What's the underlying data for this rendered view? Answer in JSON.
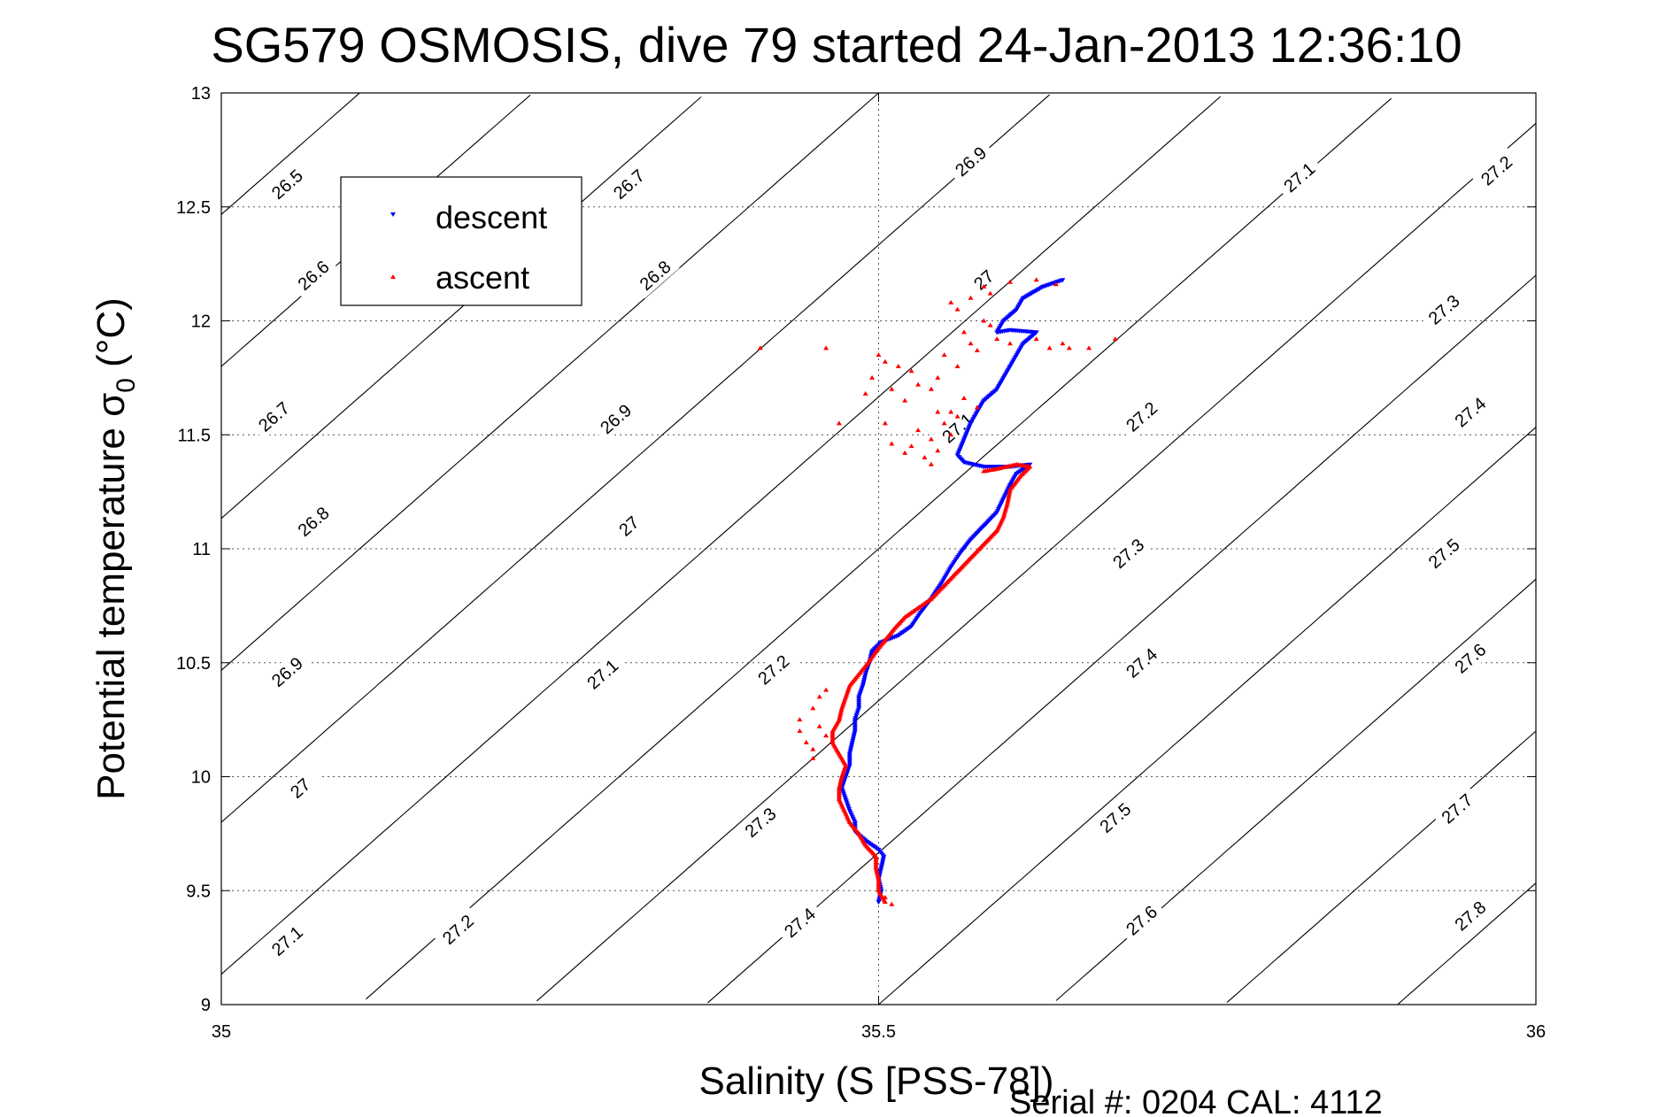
{
  "chart_data": {
    "type": "scatter",
    "title": "SG579 OSMOSIS, dive 79 started 24-Jan-2013 12:36:10",
    "xlabel": "Salinity (S [PSS-78])",
    "ylabel_main": "Potential temperature σ",
    "ylabel_sub": "0",
    "ylabel_unit": " (°C)",
    "xlim": [
      35,
      36
    ],
    "ylim": [
      9,
      13
    ],
    "xticks": [
      35,
      35.5,
      36
    ],
    "xtick_labels": [
      "35",
      "35.5",
      "36"
    ],
    "yticks": [
      9,
      9.5,
      10,
      10.5,
      11,
      11.5,
      12,
      12.5,
      13
    ],
    "ytick_labels": [
      "9",
      "9.5",
      "10",
      "10.5",
      "11",
      "11.5",
      "12",
      "12.5",
      "13"
    ],
    "grid": true,
    "legend_position": "top-left",
    "footer": "Serial #: 0204  CAL: 4112",
    "contours": {
      "sigma_levels": [
        26.5,
        26.6,
        26.7,
        26.8,
        26.9,
        27.0,
        27.1,
        27.2,
        27.3,
        27.4,
        27.5,
        27.6,
        27.7,
        27.8
      ],
      "labels": [
        {
          "text": "26.5",
          "s": 35.05,
          "t": 12.6
        },
        {
          "text": "26.7",
          "s": 35.31,
          "t": 12.6
        },
        {
          "text": "26.9",
          "s": 35.57,
          "t": 12.7
        },
        {
          "text": "27.1",
          "s": 35.82,
          "t": 12.63
        },
        {
          "text": "27.2",
          "s": 35.97,
          "t": 12.66
        },
        {
          "text": "26.6",
          "s": 35.07,
          "t": 12.2
        },
        {
          "text": "26.8",
          "s": 35.33,
          "t": 12.2
        },
        {
          "text": "27",
          "s": 35.58,
          "t": 12.18
        },
        {
          "text": "27.3",
          "s": 35.93,
          "t": 12.05
        },
        {
          "text": "26.7",
          "s": 35.04,
          "t": 11.58
        },
        {
          "text": "26.9",
          "s": 35.3,
          "t": 11.57
        },
        {
          "text": "27.1",
          "s": 35.56,
          "t": 11.53
        },
        {
          "text": "27.2",
          "s": 35.7,
          "t": 11.58
        },
        {
          "text": "27.4",
          "s": 35.95,
          "t": 11.6
        },
        {
          "text": "26.8",
          "s": 35.07,
          "t": 11.12
        },
        {
          "text": "27",
          "s": 35.31,
          "t": 11.1
        },
        {
          "text": "27.3",
          "s": 35.69,
          "t": 10.98
        },
        {
          "text": "27.5",
          "s": 35.93,
          "t": 10.98
        },
        {
          "text": "26.9",
          "s": 35.05,
          "t": 10.46
        },
        {
          "text": "27.1",
          "s": 35.29,
          "t": 10.45
        },
        {
          "text": "27.2",
          "s": 35.42,
          "t": 10.47
        },
        {
          "text": "27.4",
          "s": 35.7,
          "t": 10.5
        },
        {
          "text": "27.6",
          "s": 35.95,
          "t": 10.52
        },
        {
          "text": "27",
          "s": 35.06,
          "t": 9.95
        },
        {
          "text": "27.3",
          "s": 35.41,
          "t": 9.8
        },
        {
          "text": "27.5",
          "s": 35.68,
          "t": 9.82
        },
        {
          "text": "27.7",
          "s": 35.94,
          "t": 9.86
        },
        {
          "text": "27.1",
          "s": 35.05,
          "t": 9.28
        },
        {
          "text": "27.2",
          "s": 35.18,
          "t": 9.33
        },
        {
          "text": "27.4",
          "s": 35.44,
          "t": 9.36
        },
        {
          "text": "27.6",
          "s": 35.7,
          "t": 9.37
        },
        {
          "text": "27.8",
          "s": 35.95,
          "t": 9.39
        }
      ]
    },
    "series": [
      {
        "name": "descent",
        "color": "#0000ff",
        "marker": "triangle-down",
        "path": [
          [
            35.5,
            9.45
          ],
          [
            35.502,
            9.5
          ],
          [
            35.5,
            9.55
          ],
          [
            35.502,
            9.6
          ],
          [
            35.504,
            9.65
          ],
          [
            35.5,
            9.68
          ],
          [
            35.49,
            9.72
          ],
          [
            35.482,
            9.76
          ],
          [
            35.482,
            9.8
          ],
          [
            35.478,
            9.85
          ],
          [
            35.475,
            9.9
          ],
          [
            35.472,
            9.95
          ],
          [
            35.475,
            10.0
          ],
          [
            35.478,
            10.05
          ],
          [
            35.478,
            10.1
          ],
          [
            35.48,
            10.15
          ],
          [
            35.482,
            10.2
          ],
          [
            35.482,
            10.25
          ],
          [
            35.485,
            10.3
          ],
          [
            35.485,
            10.35
          ],
          [
            35.488,
            10.4
          ],
          [
            35.49,
            10.45
          ],
          [
            35.493,
            10.5
          ],
          [
            35.495,
            10.55
          ],
          [
            35.502,
            10.59
          ],
          [
            35.515,
            10.62
          ],
          [
            35.525,
            10.66
          ],
          [
            35.532,
            10.72
          ],
          [
            35.54,
            10.78
          ],
          [
            35.548,
            10.85
          ],
          [
            35.555,
            10.92
          ],
          [
            35.562,
            10.98
          ],
          [
            35.57,
            11.04
          ],
          [
            35.58,
            11.1
          ],
          [
            35.59,
            11.16
          ],
          [
            35.595,
            11.22
          ],
          [
            35.6,
            11.28
          ],
          [
            35.605,
            11.33
          ],
          [
            35.615,
            11.37
          ],
          [
            35.6,
            11.36
          ],
          [
            35.58,
            11.36
          ],
          [
            35.565,
            11.38
          ],
          [
            35.56,
            11.41
          ],
          [
            35.57,
            11.55
          ],
          [
            35.575,
            11.6
          ],
          [
            35.58,
            11.65
          ],
          [
            35.59,
            11.7
          ],
          [
            35.595,
            11.75
          ],
          [
            35.6,
            11.8
          ],
          [
            35.605,
            11.85
          ],
          [
            35.61,
            11.9
          ],
          [
            35.62,
            11.95
          ],
          [
            35.6,
            11.96
          ],
          [
            35.59,
            11.95
          ],
          [
            35.595,
            12.0
          ],
          [
            35.605,
            12.05
          ],
          [
            35.61,
            12.1
          ],
          [
            35.625,
            12.15
          ],
          [
            35.64,
            12.18
          ]
        ]
      },
      {
        "name": "ascent",
        "color": "#ff0000",
        "marker": "triangle-up",
        "path": [
          [
            35.505,
            9.45
          ],
          [
            35.5,
            9.5
          ],
          [
            35.5,
            9.55
          ],
          [
            35.498,
            9.6
          ],
          [
            35.498,
            9.65
          ],
          [
            35.49,
            9.7
          ],
          [
            35.485,
            9.75
          ],
          [
            35.478,
            9.8
          ],
          [
            35.474,
            9.85
          ],
          [
            35.47,
            9.9
          ],
          [
            35.47,
            9.95
          ],
          [
            35.472,
            10.0
          ],
          [
            35.475,
            10.05
          ],
          [
            35.47,
            10.1
          ],
          [
            35.465,
            10.15
          ],
          [
            35.465,
            10.2
          ],
          [
            35.47,
            10.25
          ],
          [
            35.472,
            10.3
          ],
          [
            35.475,
            10.35
          ],
          [
            35.478,
            10.4
          ],
          [
            35.485,
            10.45
          ],
          [
            35.492,
            10.5
          ],
          [
            35.498,
            10.55
          ],
          [
            35.505,
            10.6
          ],
          [
            35.512,
            10.65
          ],
          [
            35.52,
            10.7
          ],
          [
            35.53,
            10.74
          ],
          [
            35.54,
            10.78
          ],
          [
            35.55,
            10.84
          ],
          [
            35.56,
            10.9
          ],
          [
            35.57,
            10.96
          ],
          [
            35.58,
            11.02
          ],
          [
            35.59,
            11.08
          ],
          [
            35.595,
            11.14
          ],
          [
            35.598,
            11.2
          ],
          [
            35.6,
            11.26
          ],
          [
            35.608,
            11.32
          ],
          [
            35.615,
            11.36
          ],
          [
            35.605,
            11.37
          ],
          [
            35.59,
            11.35
          ],
          [
            35.58,
            11.34
          ]
        ],
        "scatter": [
          [
            35.575,
            11.62
          ],
          [
            35.56,
            11.58
          ],
          [
            35.545,
            11.6
          ],
          [
            35.55,
            11.55
          ],
          [
            35.555,
            11.5
          ],
          [
            35.54,
            11.48
          ],
          [
            35.53,
            11.52
          ],
          [
            35.525,
            11.45
          ],
          [
            35.535,
            11.4
          ],
          [
            35.52,
            11.42
          ],
          [
            35.51,
            11.46
          ],
          [
            35.505,
            11.55
          ],
          [
            35.52,
            11.65
          ],
          [
            35.51,
            11.7
          ],
          [
            35.53,
            11.72
          ],
          [
            35.545,
            11.75
          ],
          [
            35.515,
            11.8
          ],
          [
            35.5,
            11.85
          ],
          [
            35.495,
            11.75
          ],
          [
            35.49,
            11.68
          ],
          [
            35.47,
            11.55
          ],
          [
            35.46,
            11.88
          ],
          [
            35.41,
            11.88
          ],
          [
            35.55,
            11.85
          ],
          [
            35.56,
            11.8
          ],
          [
            35.57,
            11.9
          ],
          [
            35.565,
            11.95
          ],
          [
            35.58,
            12.0
          ],
          [
            35.56,
            12.05
          ],
          [
            35.555,
            12.08
          ],
          [
            35.57,
            12.1
          ],
          [
            35.585,
            12.12
          ],
          [
            35.58,
            12.15
          ],
          [
            35.6,
            12.17
          ],
          [
            35.62,
            12.18
          ],
          [
            35.635,
            12.16
          ],
          [
            35.62,
            11.92
          ],
          [
            35.63,
            11.88
          ],
          [
            35.645,
            11.88
          ],
          [
            35.64,
            11.9
          ],
          [
            35.6,
            11.9
          ],
          [
            35.59,
            11.92
          ],
          [
            35.585,
            11.98
          ],
          [
            35.575,
            11.87
          ],
          [
            35.66,
            11.88
          ],
          [
            35.68,
            11.92
          ],
          [
            35.555,
            11.6
          ],
          [
            35.565,
            11.66
          ],
          [
            35.54,
            11.7
          ],
          [
            35.525,
            11.78
          ],
          [
            35.505,
            11.82
          ],
          [
            35.54,
            11.37
          ],
          [
            35.545,
            11.43
          ],
          [
            35.44,
            10.25
          ],
          [
            35.45,
            10.3
          ],
          [
            35.455,
            10.35
          ],
          [
            35.46,
            10.38
          ],
          [
            35.44,
            10.2
          ],
          [
            35.445,
            10.15
          ],
          [
            35.45,
            10.12
          ],
          [
            35.46,
            10.18
          ],
          [
            35.45,
            10.08
          ],
          [
            35.455,
            10.22
          ],
          [
            35.51,
            9.44
          ],
          [
            35.505,
            9.47
          ]
        ]
      }
    ]
  }
}
